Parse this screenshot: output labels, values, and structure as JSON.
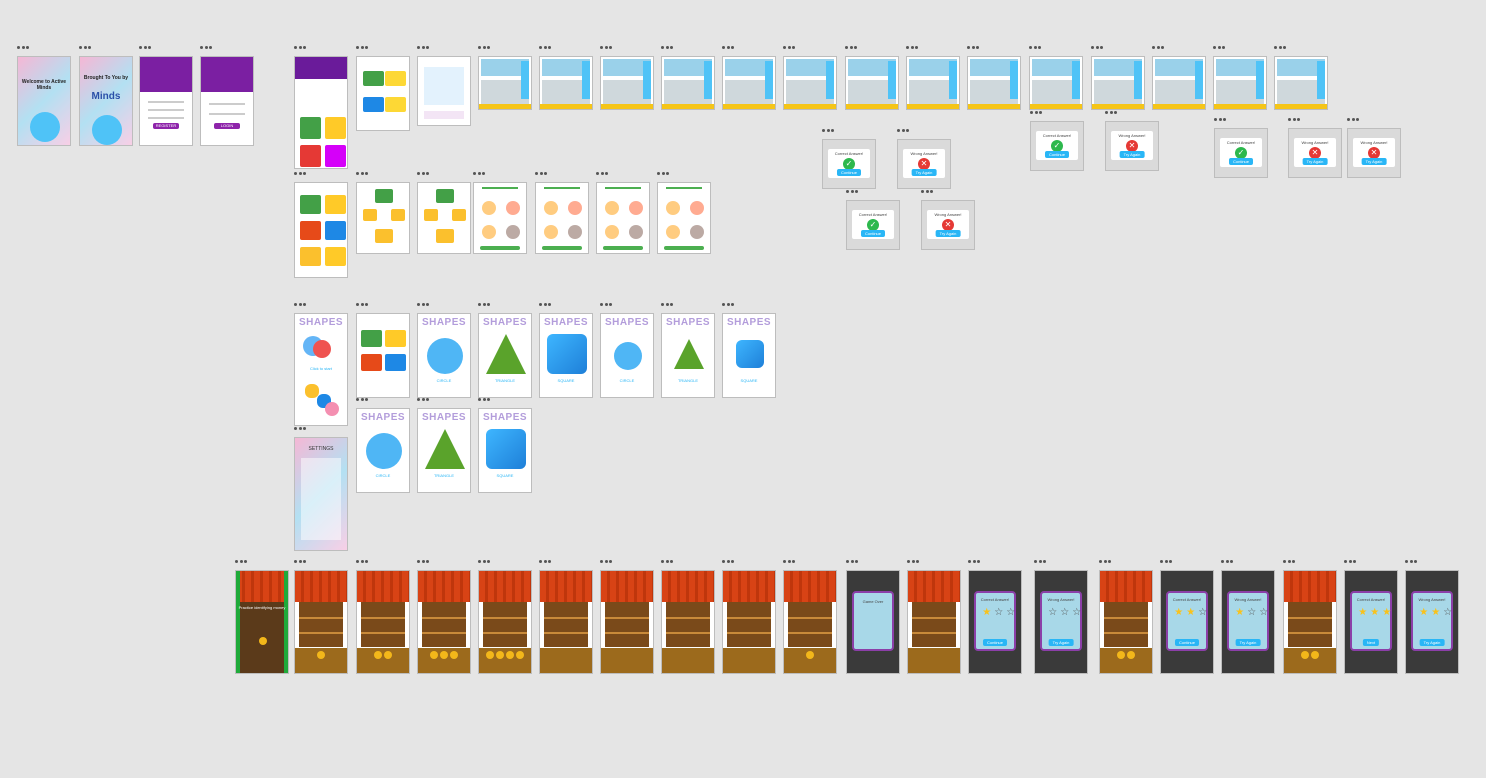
{
  "canvas": {
    "background": "#e5e5e5"
  },
  "frame_menu_icon": "more-dots-icon",
  "intro": {
    "welcome_text": "Welcome to Active Minds",
    "brought_text": "Brought To You by",
    "brand": "Minds",
    "register_label": "REGISTER",
    "login_label": "LOGIN",
    "fields": [
      "Name",
      "Email",
      "Password"
    ]
  },
  "quiz_modals": {
    "correct_title": "Correct Answer!",
    "wrong_title": "Wrong Answer!",
    "continue_label": "Continue",
    "try_again_label": "Try Again"
  },
  "shapes": {
    "title": "SHAPES",
    "tap_hint": "Click to start",
    "circle": "CIRCLE",
    "triangle": "TRIANGLE",
    "square": "SQUARE"
  },
  "settings": {
    "title": "SETTINGS"
  },
  "market": {
    "intro_text": "Practice identifying money",
    "game_over": "Game Over",
    "correct_title": "Correct Answer!",
    "wrong_title": "Wrong Answer!",
    "continue_label": "Continue",
    "try_again_label": "Try Again",
    "next_label": "Next"
  },
  "colors": {
    "purple": "#8e24aa",
    "blue_button": "#29b6f6",
    "correct_green": "#2db84d",
    "wrong_red": "#e53935",
    "awning_orange": "#d84315"
  }
}
